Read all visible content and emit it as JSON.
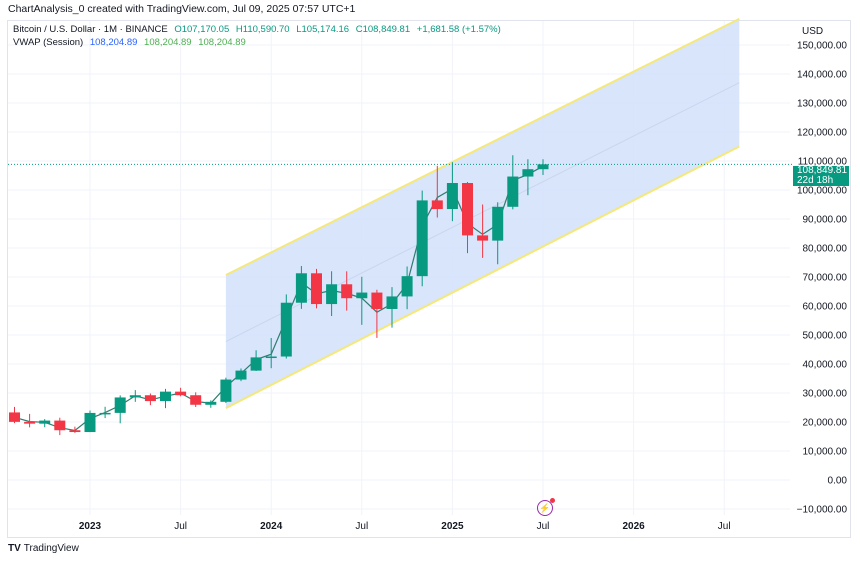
{
  "header": {
    "title": "ChartAnalysis_0 created with TradingView.com, Jul 09, 2025 07:57 UTC+1"
  },
  "legend": {
    "symbol": "Bitcoin / U.S. Dollar · 1M · BINANCE",
    "open": "O107,170.05",
    "high": "H110,590.70",
    "low": "L105,174.16",
    "close": "C108,849.81",
    "change": "+1,681.58 (+1.57%)",
    "indicator": "VWAP (Session)",
    "vwap_values": [
      "108,204.89",
      "108,204.89",
      "108,204.89"
    ]
  },
  "price_axis": {
    "currency": "USD",
    "ticks": [
      "150,000.00",
      "140,000.00",
      "130,000.00",
      "120,000.00",
      "110,000.00",
      "100,000.00",
      "90,000.00",
      "80,000.00",
      "70,000.00",
      "60,000.00",
      "50,000.00",
      "40,000.00",
      "30,000.00",
      "20,000.00",
      "10,000.00",
      "0.00",
      "−10,000.00"
    ],
    "last_price": "108,849.81",
    "countdown": "22d 18h"
  },
  "time_axis": {
    "ticks": [
      "2023",
      "Jul",
      "2024",
      "Jul",
      "2025",
      "Jul",
      "2026",
      "Jul"
    ]
  },
  "footer": {
    "brand": "TradingView"
  },
  "colors": {
    "up": "#089981",
    "down": "#f23645",
    "channel_fill": "#d4e2fb",
    "channel_line": "#f5e87a",
    "vwap": "#2e7d6e"
  },
  "chart_data": {
    "type": "candlestick",
    "interval": "1M",
    "ylim": [
      -10000,
      155000
    ],
    "dates": [
      "2022-08",
      "2022-09",
      "2022-10",
      "2022-11",
      "2022-12",
      "2023-01",
      "2023-02",
      "2023-03",
      "2023-04",
      "2023-05",
      "2023-06",
      "2023-07",
      "2023-08",
      "2023-09",
      "2023-10",
      "2023-11",
      "2023-12",
      "2024-01",
      "2024-02",
      "2024-03",
      "2024-04",
      "2024-05",
      "2024-06",
      "2024-07",
      "2024-08",
      "2024-09",
      "2024-10",
      "2024-11",
      "2024-12",
      "2025-01",
      "2025-02",
      "2025-03",
      "2025-04",
      "2025-05",
      "2025-06",
      "2025-07"
    ],
    "ohlc": [
      [
        23300,
        25200,
        19600,
        20050
      ],
      [
        20050,
        22800,
        18150,
        19430
      ],
      [
        19430,
        21000,
        18200,
        20490
      ],
      [
        20490,
        21480,
        15480,
        17160
      ],
      [
        17160,
        18390,
        16250,
        16540
      ],
      [
        16540,
        23960,
        16500,
        23130
      ],
      [
        23130,
        25250,
        21350,
        23140
      ],
      [
        23140,
        29190,
        19550,
        28470
      ],
      [
        28470,
        31000,
        26940,
        29230
      ],
      [
        29230,
        29820,
        25810,
        27210
      ],
      [
        27210,
        31430,
        24800,
        30470
      ],
      [
        30470,
        31800,
        28860,
        29230
      ],
      [
        29230,
        30240,
        25170,
        25940
      ],
      [
        25940,
        27480,
        24900,
        26960
      ],
      [
        26960,
        35280,
        26540,
        34640
      ],
      [
        34640,
        38450,
        34100,
        37720
      ],
      [
        37720,
        44730,
        37600,
        42280
      ],
      [
        42280,
        48970,
        38550,
        42580
      ],
      [
        42580,
        64000,
        41880,
        61130
      ],
      [
        61130,
        73780,
        59000,
        71280
      ],
      [
        71280,
        72800,
        59190,
        60670
      ],
      [
        60670,
        71980,
        56550,
        67490
      ],
      [
        67490,
        71960,
        58400,
        62680
      ],
      [
        62680,
        70080,
        53500,
        64630
      ],
      [
        64630,
        65600,
        49000,
        58970
      ],
      [
        58970,
        66500,
        52550,
        63300
      ],
      [
        63300,
        73620,
        58900,
        70290
      ],
      [
        70290,
        99800,
        66800,
        96410
      ],
      [
        96410,
        108350,
        90500,
        93430
      ],
      [
        93430,
        109590,
        89250,
        102410
      ],
      [
        102410,
        102750,
        78250,
        84350
      ],
      [
        84350,
        95000,
        76600,
        82550
      ],
      [
        82550,
        95770,
        74400,
        94210
      ],
      [
        94210,
        111980,
        93330,
        104640
      ],
      [
        104640,
        110600,
        98200,
        107170
      ],
      [
        107170.05,
        110590.7,
        105174.16,
        108849.81
      ]
    ],
    "channel": {
      "start": "2023-10",
      "end": "2026-08",
      "upper": [
        70700,
        159000
      ],
      "lower": [
        24800,
        115000
      ]
    }
  }
}
